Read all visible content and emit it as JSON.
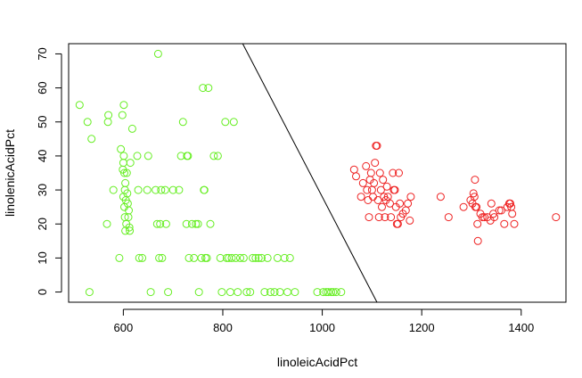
{
  "chart_data": {
    "type": "scatter",
    "title": "",
    "xlabel": "linoleicAcidPct",
    "ylabel": "linolenicAcidPct",
    "xlim": [
      490,
      1490
    ],
    "ylim": [
      -3,
      73
    ],
    "xticks": [
      600,
      800,
      1000,
      1200,
      1400
    ],
    "yticks": [
      0,
      10,
      20,
      30,
      40,
      50,
      60,
      70
    ],
    "xtick_labels": [
      "600",
      "800",
      "1000",
      "1200",
      "1400"
    ],
    "ytick_labels": [
      "0",
      "10",
      "20",
      "30",
      "40",
      "50",
      "60",
      "70"
    ],
    "grid": false,
    "legend": "none",
    "decision_boundary": {
      "x": [
        840,
        1110
      ],
      "y": [
        73,
        -3
      ],
      "color": "#000000"
    },
    "series": [
      {
        "color": "#66ee22",
        "marker": "open-circle",
        "points": [
          [
            512,
            55
          ],
          [
            528,
            50
          ],
          [
            532,
            0
          ],
          [
            536,
            45
          ],
          [
            567,
            20
          ],
          [
            569,
            50
          ],
          [
            570,
            52
          ],
          [
            580,
            30
          ],
          [
            592,
            10
          ],
          [
            595,
            42
          ],
          [
            598,
            52
          ],
          [
            601,
            55
          ],
          [
            599,
            36
          ],
          [
            600,
            38
          ],
          [
            601,
            40
          ],
          [
            602,
            35
          ],
          [
            603,
            30
          ],
          [
            604,
            32
          ],
          [
            600,
            28
          ],
          [
            602,
            25
          ],
          [
            603,
            22
          ],
          [
            604,
            18
          ],
          [
            605,
            27
          ],
          [
            606,
            20
          ],
          [
            607,
            35
          ],
          [
            608,
            29
          ],
          [
            609,
            26
          ],
          [
            610,
            22
          ],
          [
            611,
            24
          ],
          [
            612,
            19
          ],
          [
            613,
            18
          ],
          [
            614,
            38
          ],
          [
            618,
            48
          ],
          [
            628,
            40
          ],
          [
            630,
            30
          ],
          [
            632,
            10
          ],
          [
            638,
            10
          ],
          [
            648,
            30
          ],
          [
            650,
            40
          ],
          [
            655,
            0
          ],
          [
            665,
            30
          ],
          [
            668,
            20
          ],
          [
            670,
            70
          ],
          [
            672,
            10
          ],
          [
            674,
            20
          ],
          [
            676,
            30
          ],
          [
            678,
            10
          ],
          [
            684,
            30
          ],
          [
            686,
            20
          ],
          [
            690,
            0
          ],
          [
            700,
            30
          ],
          [
            712,
            30
          ],
          [
            716,
            40
          ],
          [
            720,
            50
          ],
          [
            727,
            20
          ],
          [
            728,
            40
          ],
          [
            730,
            40
          ],
          [
            732,
            10
          ],
          [
            738,
            20
          ],
          [
            742,
            10
          ],
          [
            746,
            20
          ],
          [
            750,
            20
          ],
          [
            752,
            0
          ],
          [
            757,
            10
          ],
          [
            760,
            60
          ],
          [
            762,
            30
          ],
          [
            763,
            30
          ],
          [
            765,
            10
          ],
          [
            768,
            10
          ],
          [
            771,
            60
          ],
          [
            775,
            20
          ],
          [
            782,
            40
          ],
          [
            790,
            40
          ],
          [
            795,
            10
          ],
          [
            798,
            0
          ],
          [
            805,
            50
          ],
          [
            808,
            10
          ],
          [
            812,
            10
          ],
          [
            815,
            0
          ],
          [
            818,
            10
          ],
          [
            822,
            50
          ],
          [
            826,
            10
          ],
          [
            830,
            0
          ],
          [
            835,
            10
          ],
          [
            842,
            10
          ],
          [
            848,
            0
          ],
          [
            855,
            0
          ],
          [
            860,
            10
          ],
          [
            866,
            10
          ],
          [
            872,
            10
          ],
          [
            878,
            10
          ],
          [
            884,
            0
          ],
          [
            890,
            10
          ],
          [
            896,
            0
          ],
          [
            904,
            0
          ],
          [
            910,
            10
          ],
          [
            915,
            0
          ],
          [
            924,
            10
          ],
          [
            930,
            0
          ],
          [
            935,
            10
          ],
          [
            945,
            0
          ],
          [
            990,
            0
          ],
          [
            1002,
            0
          ],
          [
            1008,
            0
          ],
          [
            1012,
            0
          ],
          [
            1018,
            0
          ],
          [
            1022,
            0
          ],
          [
            1028,
            0
          ],
          [
            1038,
            0
          ]
        ]
      },
      {
        "color": "#ee2222",
        "marker": "open-circle",
        "points": [
          [
            1064,
            36
          ],
          [
            1068,
            34
          ],
          [
            1078,
            28
          ],
          [
            1082,
            32
          ],
          [
            1088,
            37
          ],
          [
            1090,
            30
          ],
          [
            1092,
            27
          ],
          [
            1094,
            22
          ],
          [
            1096,
            33
          ],
          [
            1098,
            35
          ],
          [
            1100,
            30
          ],
          [
            1102,
            28
          ],
          [
            1104,
            32
          ],
          [
            1106,
            38
          ],
          [
            1108,
            43
          ],
          [
            1110,
            43
          ],
          [
            1112,
            27
          ],
          [
            1114,
            22
          ],
          [
            1116,
            35
          ],
          [
            1118,
            30
          ],
          [
            1120,
            25
          ],
          [
            1122,
            33
          ],
          [
            1124,
            28
          ],
          [
            1126,
            22
          ],
          [
            1128,
            27
          ],
          [
            1130,
            31
          ],
          [
            1132,
            28
          ],
          [
            1136,
            26
          ],
          [
            1138,
            22
          ],
          [
            1142,
            35
          ],
          [
            1144,
            30
          ],
          [
            1146,
            30
          ],
          [
            1148,
            25
          ],
          [
            1150,
            20
          ],
          [
            1152,
            20
          ],
          [
            1154,
            35
          ],
          [
            1156,
            26
          ],
          [
            1158,
            22
          ],
          [
            1162,
            23
          ],
          [
            1168,
            24
          ],
          [
            1172,
            26
          ],
          [
            1176,
            21
          ],
          [
            1178,
            28
          ],
          [
            1238,
            28
          ],
          [
            1254,
            22
          ],
          [
            1284,
            25
          ],
          [
            1298,
            27
          ],
          [
            1302,
            26
          ],
          [
            1304,
            29
          ],
          [
            1306,
            28
          ],
          [
            1307,
            33
          ],
          [
            1308,
            25
          ],
          [
            1310,
            25
          ],
          [
            1312,
            20
          ],
          [
            1313,
            15
          ],
          [
            1318,
            23
          ],
          [
            1322,
            22
          ],
          [
            1326,
            22
          ],
          [
            1332,
            22
          ],
          [
            1338,
            21
          ],
          [
            1340,
            26
          ],
          [
            1344,
            23
          ],
          [
            1346,
            22
          ],
          [
            1356,
            24
          ],
          [
            1360,
            24
          ],
          [
            1366,
            20
          ],
          [
            1372,
            25
          ],
          [
            1376,
            26
          ],
          [
            1378,
            26
          ],
          [
            1380,
            25
          ],
          [
            1382,
            23
          ],
          [
            1386,
            20
          ],
          [
            1470,
            22
          ]
        ]
      }
    ]
  }
}
